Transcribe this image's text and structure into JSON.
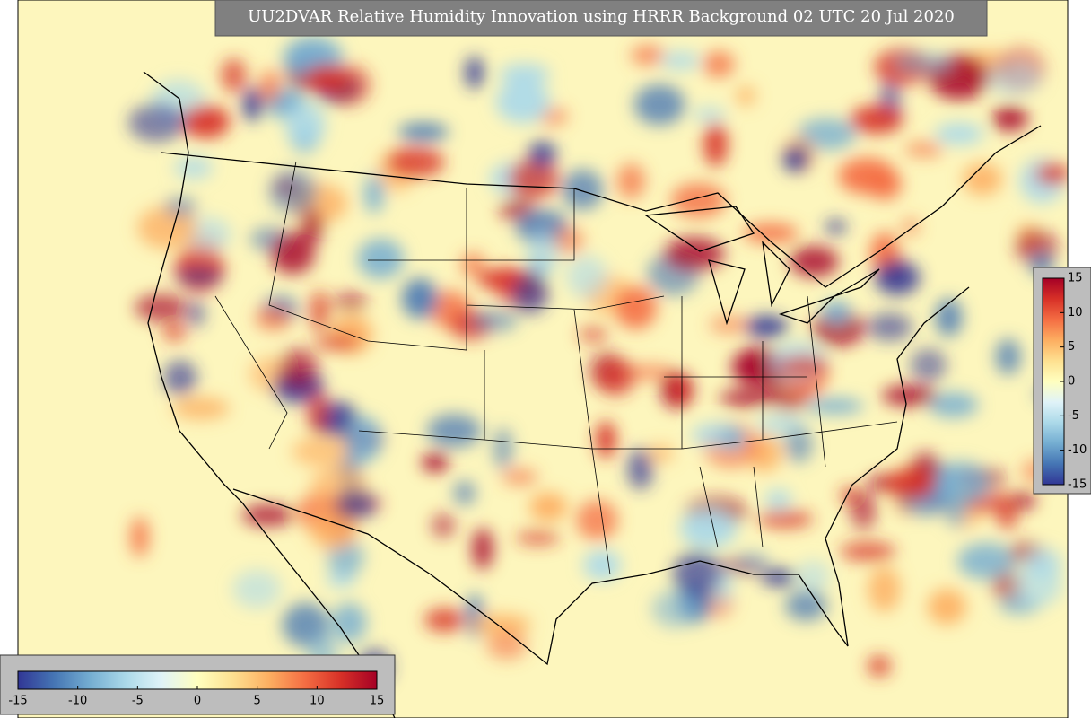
{
  "title": "UU2DVAR Relative Humidity Innovation using HRRR Background 02 UTC 20 Jul 2020",
  "colormap": [
    "#313695",
    "#4575b4",
    "#74add1",
    "#abd9e9",
    "#e0f3f8",
    "#ffffbf",
    "#fee090",
    "#fdae61",
    "#f46d43",
    "#d73027",
    "#a50026"
  ],
  "colorbar_horizontal": {
    "range": [
      -15,
      15
    ],
    "ticks": [
      -15,
      -10,
      -5,
      0,
      5,
      10,
      15
    ]
  },
  "colorbar_vertical": {
    "range": [
      -15,
      15
    ],
    "ticks": [
      15,
      10,
      5,
      0,
      -5,
      -10,
      -15
    ]
  }
}
